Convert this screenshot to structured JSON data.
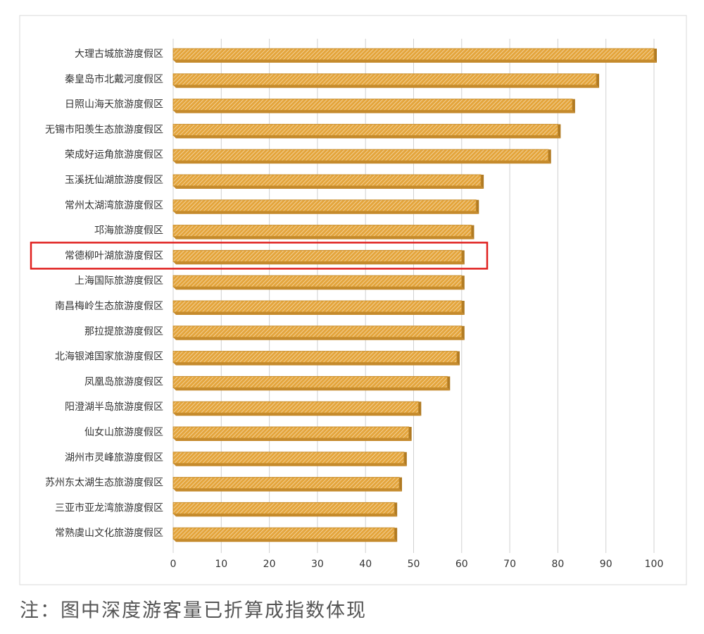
{
  "chart_data": {
    "type": "bar",
    "orientation": "horizontal",
    "categories": [
      "大理古城旅游度假区",
      "秦皇岛市北戴河度假区",
      "日照山海天旅游度假区",
      "无锡市阳羡生态旅游度假区",
      "荣成好运角旅游度假区",
      "玉溪抚仙湖旅游度假区",
      "常州太湖湾旅游度假区",
      "邛海旅游度假区",
      "常德柳叶湖旅游度假区",
      "上海国际旅游度假区",
      "南昌梅岭生态旅游度假区",
      "那拉提旅游度假区",
      "北海银滩国家旅游度假区",
      "凤凰岛旅游度假区",
      "阳澄湖半岛旅游度假区",
      "仙女山旅游度假区",
      "湖州市灵峰旅游度假区",
      "苏州东太湖生态旅游度假区",
      "三亚市亚龙湾旅游度假区",
      "常熟虞山文化旅游度假区"
    ],
    "values": [
      100,
      88,
      83,
      80,
      78,
      64,
      63,
      62,
      60,
      60,
      60,
      60,
      59,
      57,
      51,
      49,
      48,
      47,
      46,
      46
    ],
    "color": "#e4a53c",
    "highlight": 8,
    "highlight_color": "#e0201e",
    "xlim": [
      0,
      100
    ],
    "xticks": [
      0,
      10,
      20,
      30,
      40,
      50,
      60,
      70,
      80,
      90,
      100
    ],
    "grid": true,
    "note": "注：图中深度游客量已折算成指数体现"
  }
}
